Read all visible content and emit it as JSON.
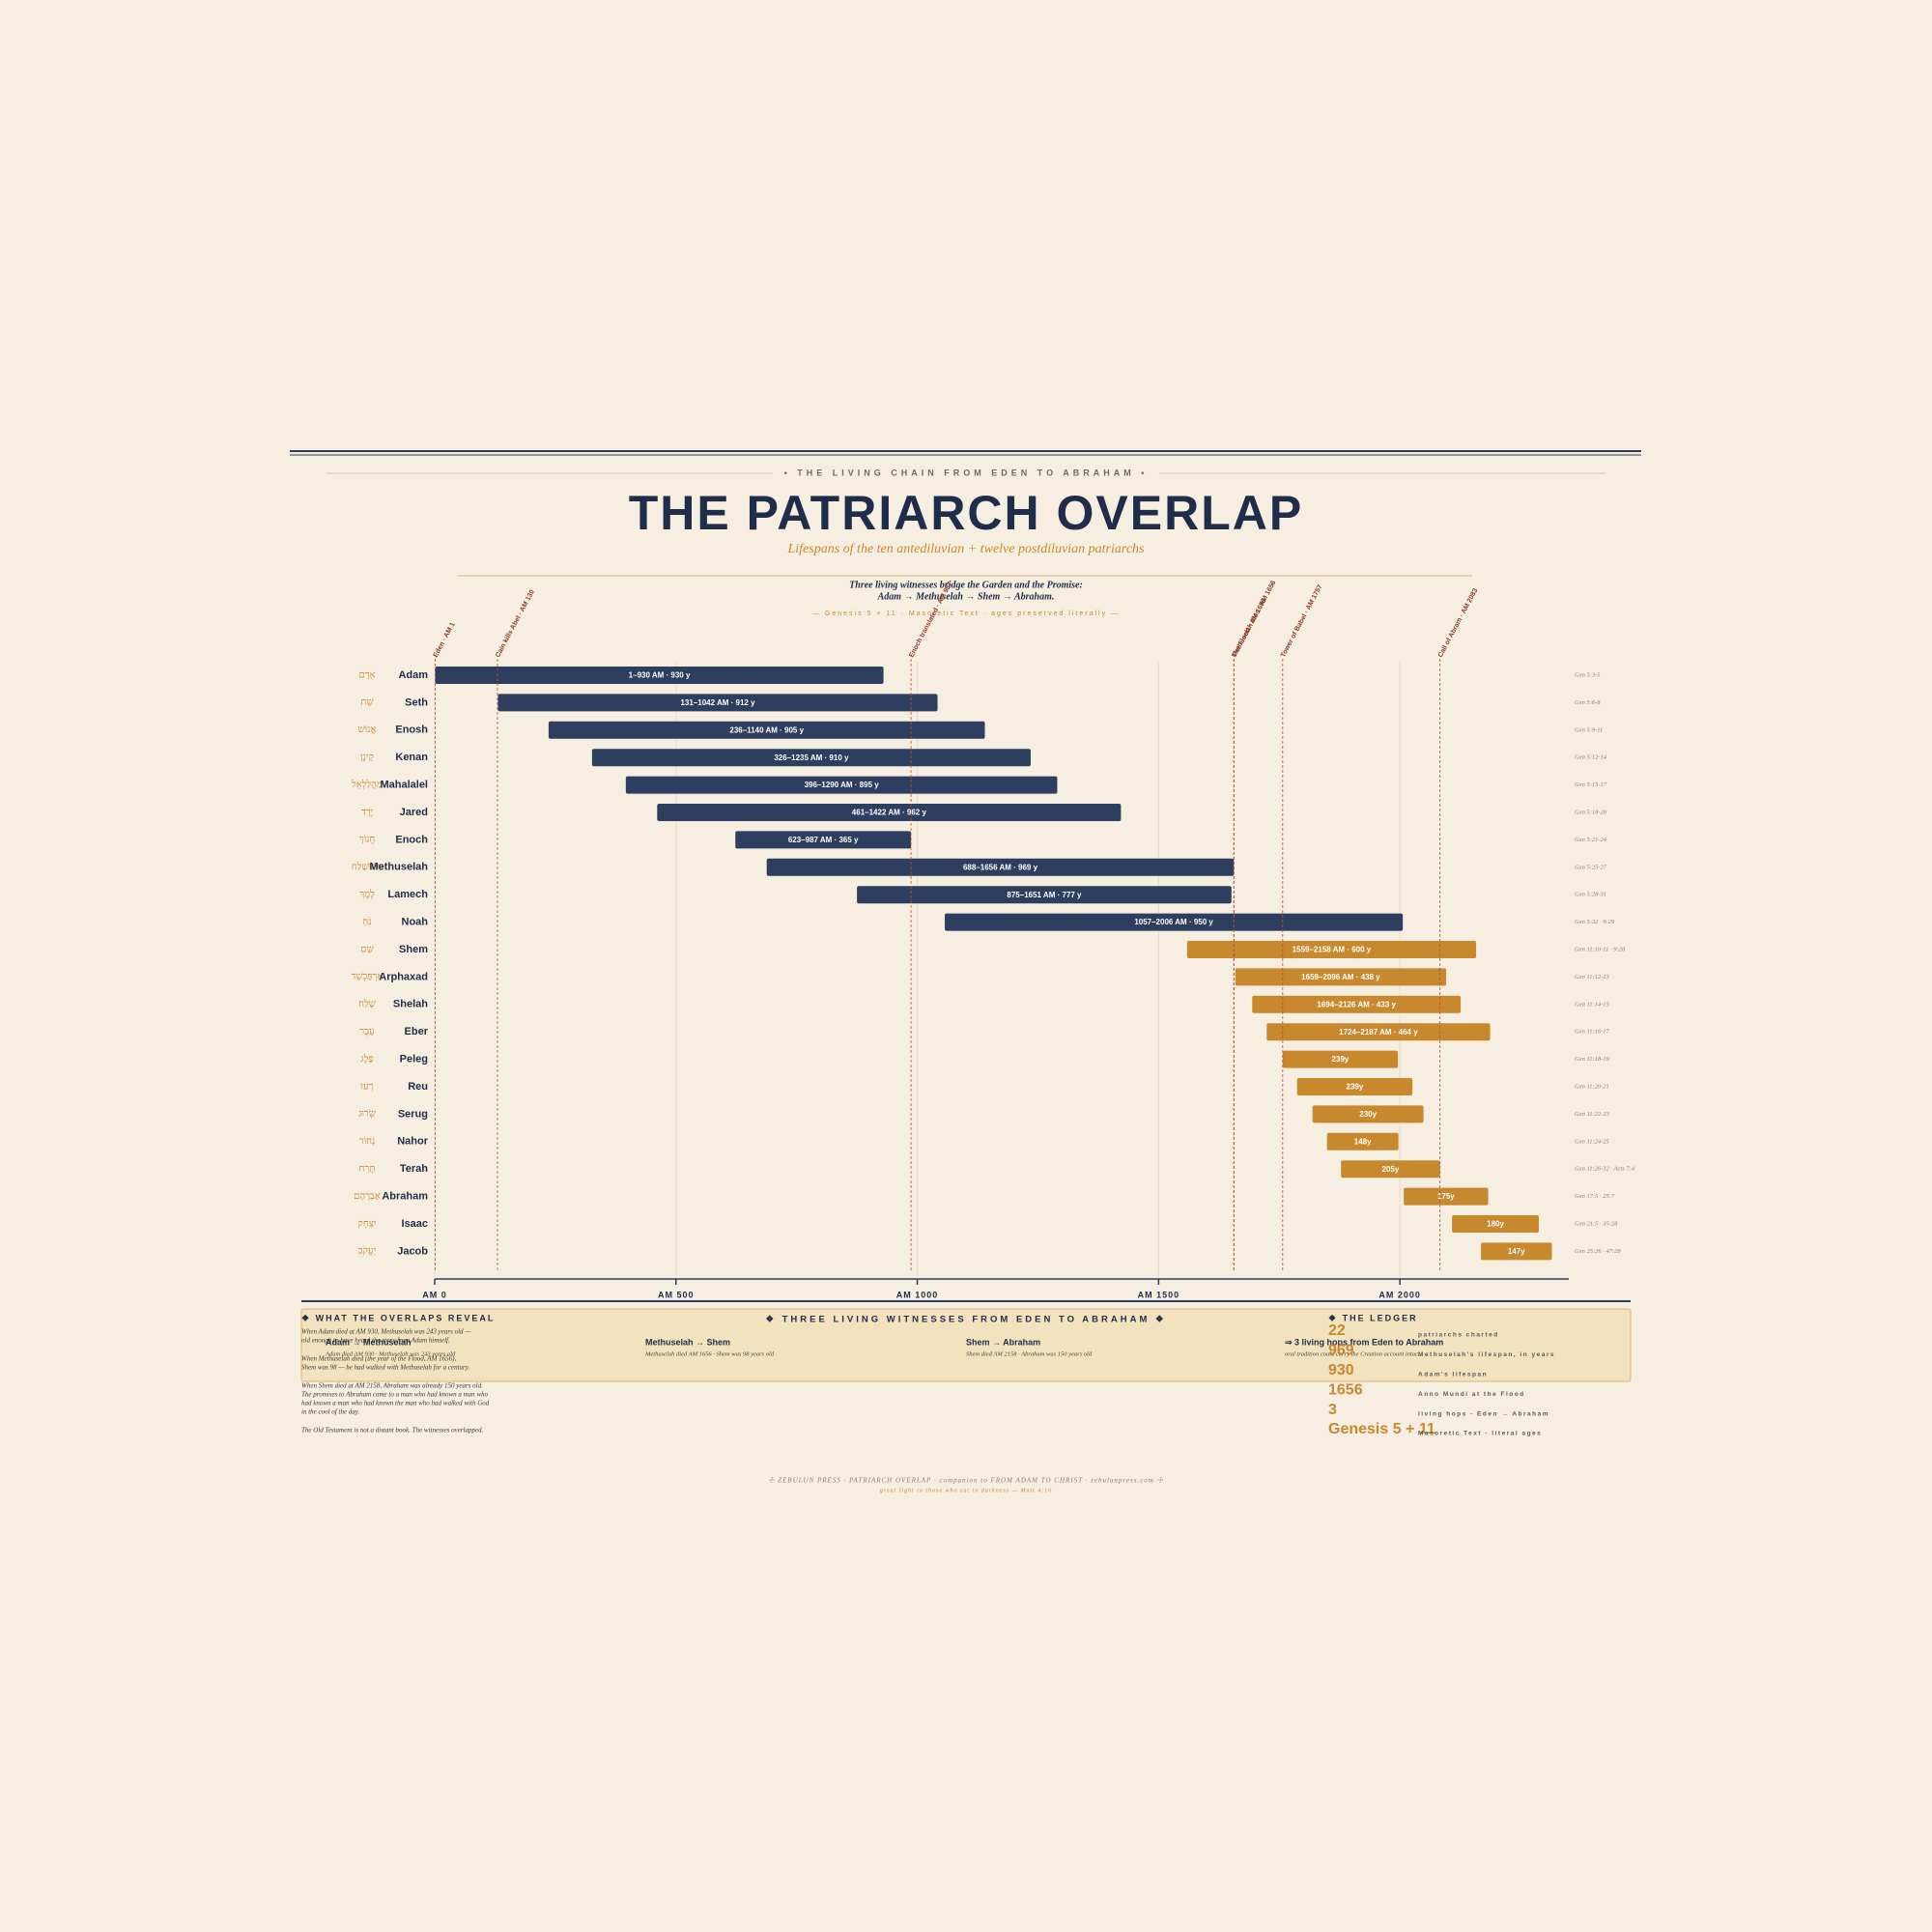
{
  "header": {
    "kicker": "• THE LIVING CHAIN FROM EDEN TO ABRAHAM •",
    "title": "THE PATRIARCH OVERLAP",
    "subtitle": "Lifespans of the ten antediluvian + twelve postdiluvian patriarchs",
    "note": [
      "Three living witnesses bridge the Garden and the Promise:",
      "Adam → Methuselah → Shem → Abraham."
    ],
    "source": "— Genesis 5 + 11 · Masoretic Text · ages preserved literally —"
  },
  "chart_data": {
    "type": "gantt",
    "categories": [
      "Adam",
      "Seth",
      "Enosh",
      "Kenan",
      "Mahalalel",
      "Jared",
      "Enoch",
      "Methuselah",
      "Lamech",
      "Noah",
      "Shem",
      "Arphaxad",
      "Shelah",
      "Eber",
      "Peleg",
      "Reu",
      "Serug",
      "Nahor",
      "Terah",
      "Abraham",
      "Isaac",
      "Jacob"
    ],
    "hebrew": [
      "אָדָם",
      "שֵׁת",
      "אֱנוֹשׁ",
      "קֵינָן",
      "מַהֲלַלְאֵל",
      "יֶרֶד",
      "חֲנוֹךְ",
      "מְתוּשֶׁלַח",
      "לֶמֶךְ",
      "נֹחַ",
      "שֵׁם",
      "אַרְפַּכְשַׁד",
      "שֶׁלַח",
      "עֵבֶר",
      "פֶּלֶג",
      "רְעוּ",
      "שְׂרוּג",
      "נָחוֹר",
      "תֶּרַח",
      "אַבְרָהָם",
      "יִצְחָק",
      "יַעֲקֹב"
    ],
    "references": [
      "Gen 5:3-5",
      "Gen 5:6-8",
      "Gen 5:9-11",
      "Gen 5:12-14",
      "Gen 5:15-17",
      "Gen 5:18-20",
      "Gen 5:21-24",
      "Gen 5:25-27",
      "Gen 5:28-31",
      "Gen 5:32 · 9:29",
      "Gen 11:10-11 · 9:28",
      "Gen 11:12-13",
      "Gen 11:14-15",
      "Gen 11:16-17",
      "Gen 11:18-19",
      "Gen 11:20-21",
      "Gen 11:22-23",
      "Gen 11:24-25",
      "Gen 11:26-32 · Acts 7:4",
      "Gen 17:5 · 25:7",
      "Gen 21:5 · 35:28",
      "Gen 25:26 · 47:28"
    ],
    "starts": [
      1,
      131,
      236,
      326,
      396,
      461,
      623,
      688,
      875,
      1057,
      1559,
      1659,
      1694,
      1724,
      1757,
      1787,
      1819,
      1849,
      1878,
      2008,
      2108,
      2168
    ],
    "ends": [
      930,
      1042,
      1140,
      1235,
      1290,
      1422,
      987,
      1656,
      1651,
      2006,
      2158,
      2096,
      2126,
      2187,
      1996,
      2026,
      2049,
      1997,
      2083,
      2183,
      2288,
      2315
    ],
    "value_labels": [
      "1–930 AM · 930 y",
      "131–1042 AM · 912 y",
      "236–1140 AM · 905 y",
      "326–1235 AM · 910 y",
      "396–1290 AM · 895 y",
      "461–1422 AM · 962 y",
      "623–987 AM · 365 y",
      "688–1656 AM · 969 y",
      "875–1651 AM · 777 y",
      "1057–2006 AM · 950 y",
      "1559–2158 AM · 600 y",
      "1659–2096 AM · 438 y",
      "1694–2126 AM · 433 y",
      "1724–2187 AM · 464 y",
      "239y",
      "239y",
      "230y",
      "148y",
      "205y",
      "175y",
      "180y",
      "147y"
    ],
    "colors": [
      "#2d3e5f",
      "#2d3e5f",
      "#2d3e5f",
      "#2d3e5f",
      "#2d3e5f",
      "#2d3e5f",
      "#2d3e5f",
      "#2d3e5f",
      "#2d3e5f",
      "#2d3e5f",
      "#c8892e",
      "#c8892e",
      "#c8892e",
      "#c8892e",
      "#c8892e",
      "#c8892e",
      "#c8892e",
      "#c8892e",
      "#c8892e",
      "#c8892e",
      "#c8892e",
      "#c8892e"
    ],
    "xlim": [
      0,
      2350
    ],
    "xticks": [
      {
        "value": 0,
        "label": "AM 0"
      },
      {
        "value": 500,
        "label": "AM 500"
      },
      {
        "value": 1000,
        "label": "AM 1000"
      },
      {
        "value": 1500,
        "label": "AM 1500"
      },
      {
        "value": 2000,
        "label": "AM 2000"
      }
    ],
    "grid": true,
    "events": [
      {
        "at": 1,
        "label": "Eden · AM 1"
      },
      {
        "at": 130,
        "label": "Cain kills Abel · AM 130"
      },
      {
        "at": 987,
        "label": "Enoch translated · AM 987"
      },
      {
        "at": 1656,
        "label": "Methuselah dies · AM 1656"
      },
      {
        "at": 1656,
        "label": "The Flood · AM 1656"
      },
      {
        "at": 1757,
        "label": "Tower of Babel · AM 1757"
      },
      {
        "at": 2083,
        "label": "Call of Abram · AM 2083"
      }
    ]
  },
  "reveal": {
    "heading": "❖ WHAT THE OVERLAPS REVEAL",
    "paragraphs": [
      [
        "When Adam died at AM 930, Methuselah was 243 years old —",
        "old enough to have heard the story from Adam himself."
      ],
      [
        "When Methuselah died (the year of the Flood, AM 1656),",
        "Shem was 98 — he had walked with Methuselah for a century."
      ],
      [
        "When Shem died at AM 2158, Abraham was already 150 years old.",
        "The promises to Abraham came to a man who had known a man who",
        "had known a man who had known the man who had walked with God",
        "in the cool of the day."
      ],
      [
        "The Old Testament is not a distant book. The witnesses overlapped."
      ]
    ]
  },
  "witnesses": {
    "heading": "❖ THREE LIVING WITNESSES FROM EDEN TO ABRAHAM ❖",
    "items": [
      {
        "title": "Adam → Methuselah",
        "detail": "Adam died AM 930 · Methuselah was 243 years old"
      },
      {
        "title": "Methuselah → Shem",
        "detail": "Methuselah died AM 1656 · Shem was 98 years old"
      },
      {
        "title": "Shem → Abraham",
        "detail": "Shem died AM 2158 · Abraham was 150 years old"
      },
      {
        "title": "⇒ 3 living hops from Eden to Abraham",
        "detail": "oral tradition could carry the Creation account intact"
      }
    ]
  },
  "ledger": {
    "heading": "❖ THE LEDGER",
    "items": [
      {
        "figure": "22",
        "label": "patriarchs charted"
      },
      {
        "figure": "969",
        "label": "Methuselah's lifespan, in years"
      },
      {
        "figure": "930",
        "label": "Adam's lifespan"
      },
      {
        "figure": "1656",
        "label": "Anno Mundi at the Flood"
      },
      {
        "figure": "3",
        "label": "living hops · Eden → Abraham"
      },
      {
        "figure": "Genesis 5 + 11",
        "label": "Masoretic Text · literal ages"
      }
    ]
  },
  "footer": {
    "imprint": "☩ ZEBULUN PRESS · PATRIARCH OVERLAP · companion to FROM ADAM TO CHRIST · zebulunpress.com ☩",
    "verse": "great light to those who sat in darkness — Matt 4:16"
  }
}
